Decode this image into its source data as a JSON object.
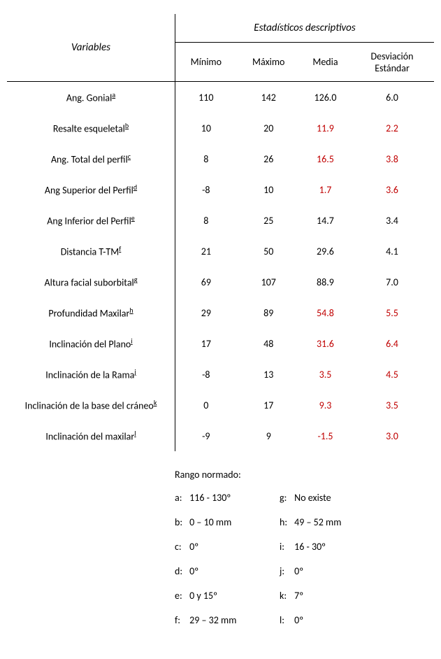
{
  "header": {
    "variables": "Variables",
    "stats": "Estadísticos descriptivos",
    "min": "Mínimo",
    "max": "Máximo",
    "mean": "Media",
    "sd_line1": "Desviación",
    "sd_line2": "Estándar"
  },
  "rows": [
    {
      "label": "Ang. Gonial",
      "fn": "a",
      "min": "110",
      "max": "142",
      "mean": "126.0",
      "sd": "6.0",
      "mean_hl": false,
      "sd_hl": false
    },
    {
      "label": "Resalte esqueletal",
      "fn": "b",
      "min": "10",
      "max": "20",
      "mean": "11.9",
      "sd": "2.2",
      "mean_hl": true,
      "sd_hl": true
    },
    {
      "label": "Ang. Total del perfil",
      "fn": "c",
      "min": "8",
      "max": "26",
      "mean": "16.5",
      "sd": "3.8",
      "mean_hl": true,
      "sd_hl": true
    },
    {
      "label": "Ang Superior del Perfil",
      "fn": "d",
      "min": "-8",
      "max": "10",
      "mean": "1.7",
      "sd": "3.6",
      "mean_hl": true,
      "sd_hl": true
    },
    {
      "label": "Ang Inferior del Perfil",
      "fn": "e",
      "min": "8",
      "max": "25",
      "mean": "14.7",
      "sd": "3.4",
      "mean_hl": false,
      "sd_hl": false
    },
    {
      "label": "Distancia T-TM",
      "fn": "f",
      "min": "21",
      "max": "50",
      "mean": "29.6",
      "sd": "4.1",
      "mean_hl": false,
      "sd_hl": false
    },
    {
      "label": "Altura facial suborbital",
      "fn": "g",
      "min": "69",
      "max": "107",
      "mean": "88.9",
      "sd": "7.0",
      "mean_hl": false,
      "sd_hl": false
    },
    {
      "label": "Profundidad Maxilar",
      "fn": "h",
      "min": "29",
      "max": "89",
      "mean": "54.8",
      "sd": "5.5",
      "mean_hl": true,
      "sd_hl": true
    },
    {
      "label": "Inclinación del Plano",
      "fn": "i",
      "min": "17",
      "max": "48",
      "mean": "31.6",
      "sd": "6.4",
      "mean_hl": true,
      "sd_hl": true
    },
    {
      "label": "Inclinación de la Rama",
      "fn": "j",
      "min": "-8",
      "max": "13",
      "mean": "3.5",
      "sd": "4.5",
      "mean_hl": true,
      "sd_hl": true
    },
    {
      "label": "Inclinación de la base del cráneo",
      "fn": "k",
      "min": "0",
      "max": "17",
      "mean": "9.3",
      "sd": "3.5",
      "mean_hl": true,
      "sd_hl": true
    },
    {
      "label": "Inclinación del maxilar",
      "fn": "l",
      "min": "-9",
      "max": "9",
      "mean": "-1.5",
      "sd": "3.0",
      "mean_hl": true,
      "sd_hl": true
    }
  ],
  "legend": {
    "title": "Rango normado:",
    "items": [
      {
        "key": "a:",
        "val": "116 - 130º"
      },
      {
        "key": "g:",
        "val": "No existe"
      },
      {
        "key": "b:",
        "val": "0 – 10 mm"
      },
      {
        "key": "h:",
        "val": "49 – 52  mm"
      },
      {
        "key": "c:",
        "val": "0º"
      },
      {
        "key": "i:",
        "val": "16 - 30º"
      },
      {
        "key": "d:",
        "val": "0º"
      },
      {
        "key": "j:",
        "val": "0º"
      },
      {
        "key": "e:",
        "val": "0  y 15º"
      },
      {
        "key": "k:",
        "val": "7º"
      },
      {
        "key": "f:",
        "val": "29 – 32 mm"
      },
      {
        "key": "l:",
        "val": "0º"
      }
    ]
  },
  "style": {
    "highlight_color": "#c00000",
    "text_color": "#000000",
    "background": "#ffffff"
  }
}
